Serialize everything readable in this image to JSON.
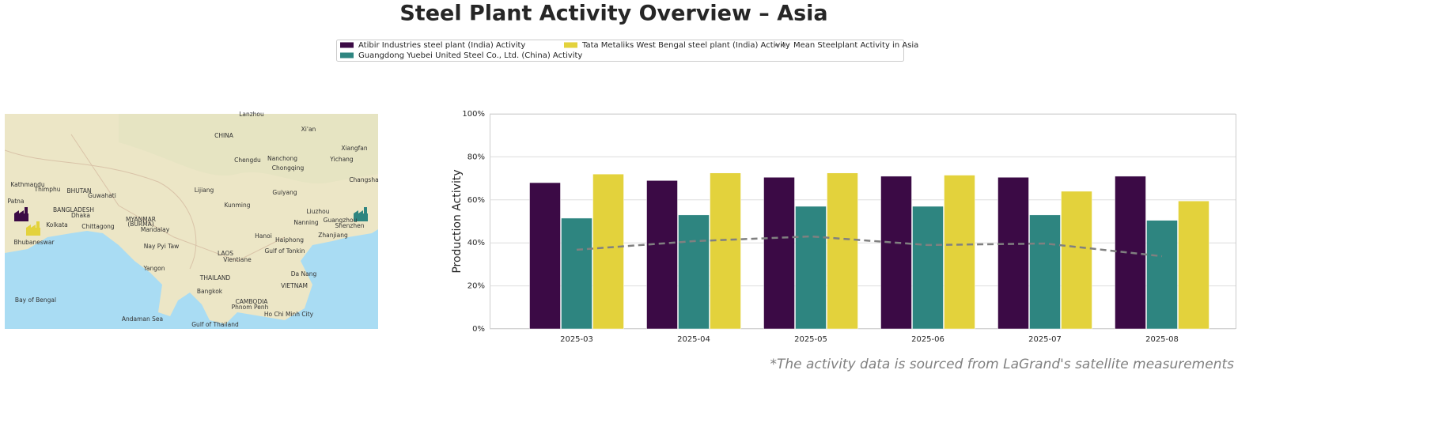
{
  "title": "Steel Plant Activity Overview – Asia",
  "footnote": "*The activity data is sourced from LaGrand's satellite measurements",
  "map": {
    "labels": [
      "Lanzhou",
      "Xi'an",
      "CHINA",
      "Chengdu",
      "Nanchong",
      "Xiangfan",
      "Chongqing",
      "Yichang",
      "Kathmandu",
      "Thimphu",
      "BHUTAN",
      "Guwahati",
      "Lijiang",
      "Guiyang",
      "Changsha",
      "Patna",
      "BANGLADESH",
      "Dhaka",
      "Kunming",
      "Liuzhou",
      "Kolkata",
      "Chittagong",
      "MYANMAR",
      "(BURMA)",
      "Nanning",
      "Guangzhou",
      "Shenzhen",
      "Mandalay",
      "Hanoi",
      "Haiphong",
      "Zhanjiang",
      "Bhubaneswar",
      "Nay Pyi Taw",
      "Gulf of Tonkin",
      "LAOS",
      "Vientiane",
      "Yangon",
      "Da Nang",
      "THAILAND",
      "VIETNAM",
      "Bangkok",
      "CAMBODIA",
      "Phnom Penh",
      "Ho Chi Minh City",
      "Bay of Bengal",
      "Andaman Sea",
      "Gulf of Thailand"
    ]
  },
  "chart_data": {
    "type": "bar",
    "y_label": "Production Activity",
    "categories": [
      "2025-03",
      "2025-04",
      "2025-05",
      "2025-06",
      "2025-07",
      "2025-08"
    ],
    "series": [
      {
        "name": "Atibir Industries steel plant (India) Activity",
        "color": "#3b0a45",
        "type": "bar",
        "values": [
          68,
          69,
          70.5,
          71,
          70.5,
          71
        ]
      },
      {
        "name": "Guangdong Yuebei United Steel Co., Ltd. (China) Activity",
        "color": "#2e8580",
        "type": "bar",
        "values": [
          51.5,
          53,
          57,
          57,
          53,
          50.5
        ]
      },
      {
        "name": "Tata Metaliks West Bengal steel plant (India) Activity",
        "color": "#e3d23c",
        "type": "bar",
        "values": [
          72,
          72.5,
          72.5,
          71.5,
          64,
          59.5
        ]
      },
      {
        "name": "Mean Steelplant Activity in Asia",
        "color": "#808080",
        "type": "line",
        "values": [
          36.8,
          40.8,
          43,
          39,
          39.7,
          33.8
        ]
      }
    ],
    "ylim": [
      0,
      100
    ],
    "yticks": [
      {
        "value": 0,
        "label": "0%"
      },
      {
        "value": 20,
        "label": "20%"
      },
      {
        "value": 40,
        "label": "40%"
      },
      {
        "value": 60,
        "label": "60%"
      },
      {
        "value": 80,
        "label": "80%"
      },
      {
        "value": 100,
        "label": "100%"
      }
    ],
    "grid": true
  }
}
